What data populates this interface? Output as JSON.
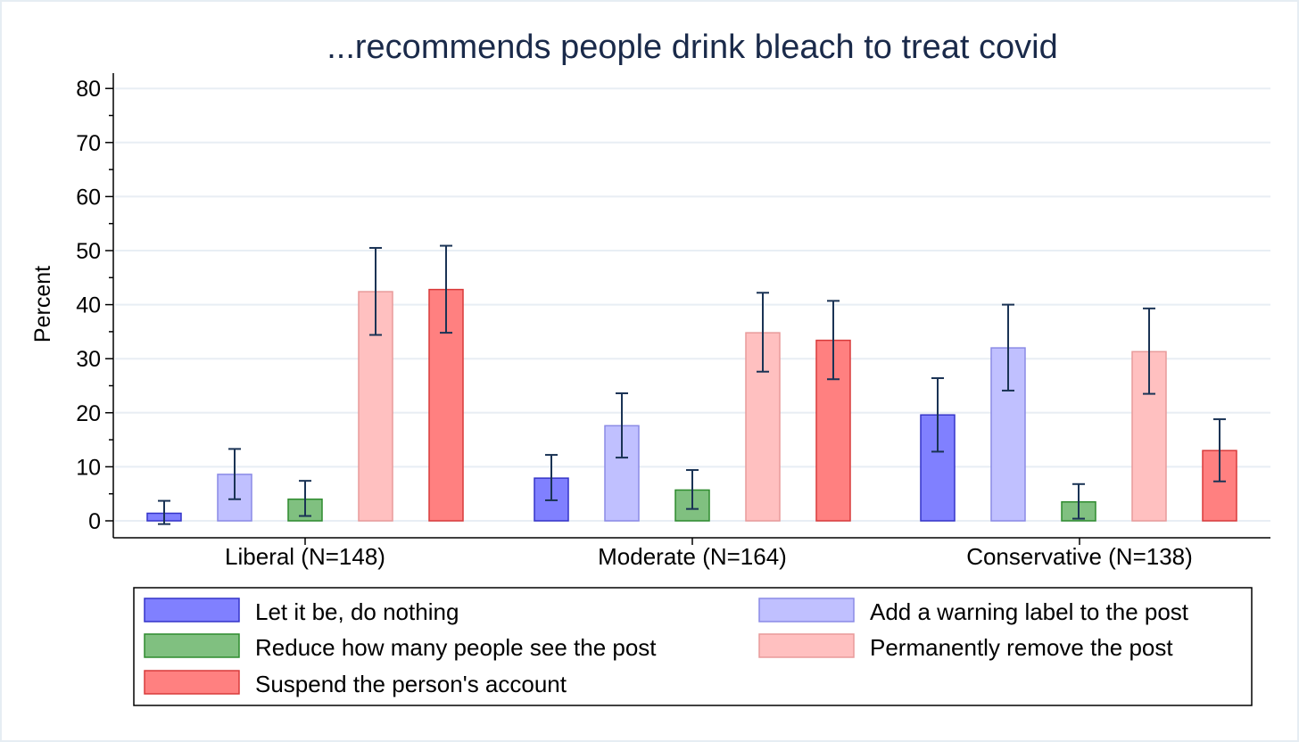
{
  "chart_data": {
    "type": "bar",
    "title": "...recommends people drink bleach to treat covid",
    "ylabel": "Percent",
    "xlabel": "",
    "ylim": [
      0,
      82
    ],
    "yticks": [
      0,
      10,
      20,
      30,
      40,
      50,
      60,
      70,
      80
    ],
    "grid": true,
    "legend_position": "bottom",
    "categories": [
      "Liberal (N=148)",
      "Moderate (N=164)",
      "Conservative (N=138)"
    ],
    "series": [
      {
        "name": "Let it be, do nothing",
        "color": "#8080ff",
        "edge": "#3434c8",
        "values": [
          1.4,
          7.9,
          19.6
        ],
        "ci_low": [
          -0.6,
          3.8,
          12.8
        ],
        "ci_high": [
          3.7,
          12.2,
          26.4
        ]
      },
      {
        "name": "Add a warning label to the post",
        "color": "#c0c0ff",
        "edge": "#8a8ae6",
        "values": [
          8.6,
          17.6,
          32.0
        ],
        "ci_low": [
          4.0,
          11.7,
          24.1
        ],
        "ci_high": [
          13.3,
          23.6,
          40.0
        ]
      },
      {
        "name": "Reduce how many people see the post",
        "color": "#80c080",
        "edge": "#2e8b2e",
        "values": [
          4.0,
          5.7,
          3.5
        ],
        "ci_low": [
          0.9,
          2.2,
          0.4
        ],
        "ci_high": [
          7.4,
          9.4,
          6.8
        ]
      },
      {
        "name": "Permanently remove the post",
        "color": "#ffc0c0",
        "edge": "#e89a9a",
        "values": [
          42.4,
          34.8,
          31.3
        ],
        "ci_low": [
          34.4,
          27.6,
          23.5
        ],
        "ci_high": [
          50.5,
          42.2,
          39.3
        ]
      },
      {
        "name": "Suspend the person's account",
        "color": "#ff8080",
        "edge": "#d83a3a",
        "values": [
          42.8,
          33.4,
          13.0
        ],
        "ci_low": [
          34.8,
          26.2,
          7.3
        ],
        "ci_high": [
          50.9,
          40.7,
          18.8
        ]
      }
    ],
    "legend_order": [
      0,
      1,
      2,
      3,
      4
    ]
  },
  "colors": {
    "title": "#1a2a4a",
    "grid": "#e8eef4",
    "errorbar": "#1a3355",
    "axis": "#000000"
  }
}
